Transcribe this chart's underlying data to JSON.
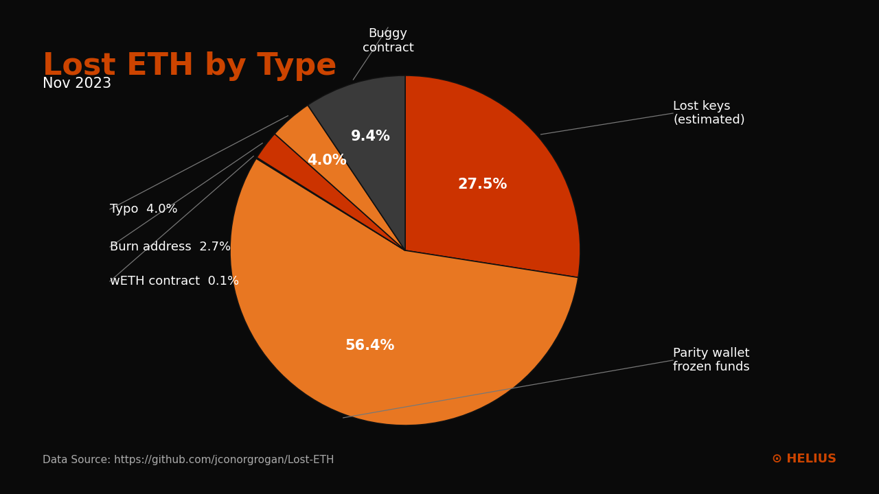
{
  "title": "Lost ETH by Type",
  "subtitle": "Nov 2023",
  "background_color": "#0a0a0a",
  "title_color": "#cc4400",
  "subtitle_color": "#ffffff",
  "text_color": "#ffffff",
  "datasource": "Data Source: https://github.com/jconorgrogan/Lost-ETH",
  "slices": [
    {
      "label": "Lost keys\n(estimated)",
      "value": 27.5,
      "color": "#cc3300",
      "pct_label": "27.5%"
    },
    {
      "label": "Parity wallet\nfrozen funds",
      "value": 56.4,
      "color": "#e87722",
      "pct_label": "56.4%"
    },
    {
      "label": "wETH contract",
      "value": 0.1,
      "color": "#aa2200",
      "pct_label": "0.1%"
    },
    {
      "label": "Burn address",
      "value": 2.7,
      "color": "#cc3300",
      "pct_label": "2.7%"
    },
    {
      "label": "Typo",
      "value": 4.0,
      "color": "#e87722",
      "pct_label": "4.0%"
    },
    {
      "label": "Buggy\ncontract",
      "value": 9.4,
      "color": "#3a3a3a",
      "pct_label": "9.4%"
    }
  ],
  "startangle": 90,
  "helius_color": "#cc4400",
  "helius_text": "⊙ HELIUS"
}
